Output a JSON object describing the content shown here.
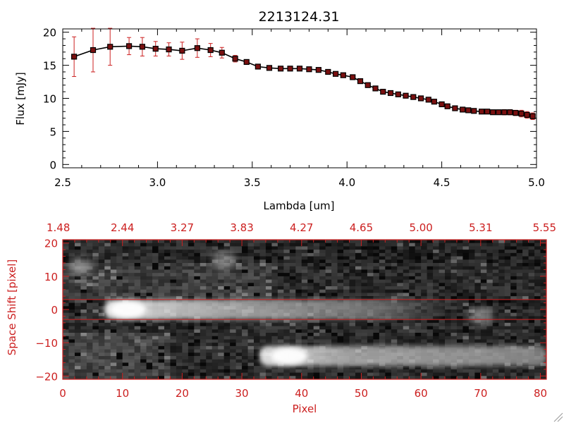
{
  "colors": {
    "black": "#000000",
    "red": "#cc2020",
    "background": "#ffffff"
  },
  "chart_data": [
    {
      "type": "line",
      "title": "2213124.31",
      "xlabel": "Lambda [um]",
      "ylabel": "Flux [mJy]",
      "xlim": [
        2.5,
        5.0
      ],
      "ylim": [
        -0.5,
        20.5
      ],
      "x_ticks": [
        2.5,
        3.0,
        3.5,
        4.0,
        4.5,
        5.0
      ],
      "x_tick_labels": [
        "2.5",
        "3.0",
        "3.5",
        "4.0",
        "4.5",
        "5.0"
      ],
      "y_ticks": [
        0,
        5,
        10,
        15,
        20
      ],
      "y_tick_labels": [
        "0",
        "5",
        "10",
        "15",
        "20"
      ],
      "marker": "square",
      "series": [
        {
          "x": [
            2.56,
            2.66,
            2.75,
            2.85,
            2.92,
            2.99,
            3.06,
            3.13,
            3.21,
            3.28,
            3.34,
            3.41,
            3.47,
            3.53,
            3.59,
            3.65,
            3.7,
            3.75,
            3.8,
            3.85,
            3.9,
            3.94,
            3.98,
            4.03,
            4.07,
            4.11,
            4.15,
            4.19,
            4.23,
            4.27,
            4.31,
            4.35,
            4.39,
            4.43,
            4.46,
            4.5,
            4.53,
            4.57,
            4.61,
            4.64,
            4.67,
            4.71,
            4.74,
            4.77,
            4.8,
            4.83,
            4.86,
            4.89,
            4.92,
            4.95,
            4.98
          ],
          "y": [
            16.3,
            17.3,
            17.8,
            17.9,
            17.8,
            17.5,
            17.4,
            17.2,
            17.6,
            17.3,
            16.9,
            16.0,
            15.5,
            14.8,
            14.6,
            14.5,
            14.5,
            14.5,
            14.4,
            14.3,
            14.0,
            13.7,
            13.5,
            13.2,
            12.6,
            12.0,
            11.5,
            11.0,
            10.8,
            10.6,
            10.4,
            10.2,
            10.0,
            9.8,
            9.5,
            9.1,
            8.8,
            8.5,
            8.3,
            8.2,
            8.1,
            8.0,
            8.0,
            7.9,
            7.9,
            7.9,
            7.9,
            7.8,
            7.7,
            7.5,
            7.3
          ],
          "errors": [
            3.0,
            3.3,
            2.8,
            1.3,
            1.4,
            1.1,
            1.0,
            1.3,
            1.4,
            1.0,
            0.8,
            0.5,
            0.3,
            0.3,
            0.2,
            0.2,
            0.2,
            0.2,
            0.2,
            0.2,
            0.2,
            0.2,
            0.2,
            0.2,
            0.2,
            0.2,
            0.2,
            0.2,
            0.2,
            0.2,
            0.2,
            0.2,
            0.2,
            0.2,
            0.2,
            0.2,
            0.2,
            0.2,
            0.2,
            0.2,
            0.2,
            0.2,
            0.3,
            0.3,
            0.3,
            0.4,
            0.4,
            0.4,
            0.5,
            0.5,
            0.5
          ]
        }
      ]
    },
    {
      "type": "heatmap",
      "xlabel": "Pixel",
      "ylabel": "Space Shift [pixel]",
      "xlim": [
        0,
        81
      ],
      "ylim": [
        -21,
        21
      ],
      "x_ticks": [
        0,
        10,
        20,
        30,
        40,
        50,
        60,
        70,
        80
      ],
      "x_tick_labels": [
        "0",
        "10",
        "20",
        "30",
        "40",
        "50",
        "60",
        "70",
        "80"
      ],
      "y_ticks": [
        -20,
        -10,
        0,
        10,
        20
      ],
      "y_tick_labels": [
        "−20",
        "−10",
        "0",
        "10",
        "20"
      ],
      "top_axis_ticks": [
        0,
        10,
        20,
        30,
        40,
        50,
        60,
        70,
        80
      ],
      "top_axis_labels": [
        "1.48",
        "2.44",
        "3.27",
        "3.83",
        "4.27",
        "4.65",
        "5.00",
        "5.31",
        "5.55"
      ],
      "extraction_aperture": [
        -3,
        3
      ],
      "bright_traces": [
        {
          "x_range": [
            7,
            64
          ],
          "center": 0,
          "peak_x": 10
        },
        {
          "x_range": [
            33,
            81
          ],
          "center": -14,
          "peak_x": 37
        }
      ],
      "faint_sources": [
        {
          "x": 27,
          "y": 15
        },
        {
          "x": 70,
          "y": -2
        },
        {
          "x": 3,
          "y": 13
        }
      ]
    }
  ]
}
